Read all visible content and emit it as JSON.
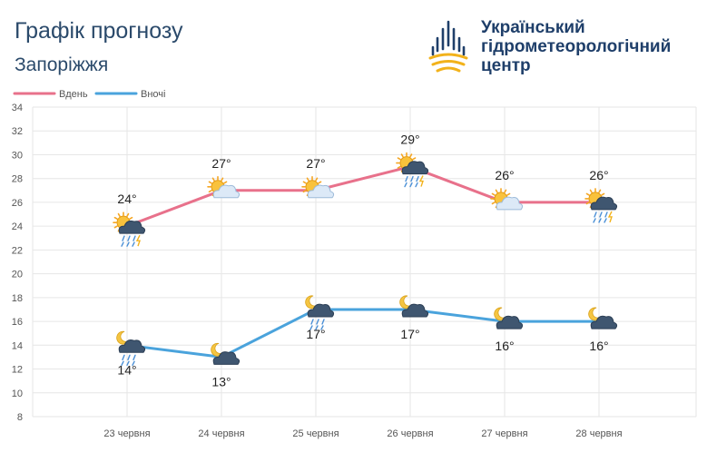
{
  "header": {
    "title": "Графік прогнозу",
    "city": "Запоріжжя"
  },
  "logo": {
    "line1": "Український",
    "line2": "гідрометеорологічний",
    "line3": "центр"
  },
  "colors": {
    "day": "#e8718b",
    "night": "#4aa3dc",
    "grid": "#e6e6e6",
    "text": "#2b4a6b"
  },
  "chart_data": {
    "type": "line",
    "categories": [
      "23 червня",
      "24 червня",
      "25 червня",
      "26 червня",
      "27 червня",
      "28 червня"
    ],
    "ylim": [
      8,
      34
    ],
    "yticks": [
      8,
      10,
      12,
      14,
      16,
      18,
      20,
      22,
      24,
      26,
      28,
      30,
      32,
      34
    ],
    "grid": true,
    "legend": "top-left",
    "series": [
      {
        "name": "Вдень",
        "values": [
          24,
          27,
          27,
          29,
          26,
          26
        ],
        "labels": [
          "24°",
          "27°",
          "27°",
          "29°",
          "26°",
          "26°"
        ],
        "icons": [
          "sun-cloud-rain-thunder-icon",
          "sun-cloud-icon",
          "sun-cloud-icon",
          "sun-cloud-rain-thunder-icon",
          "sun-cloud-icon",
          "sun-cloud-rain-thunder-icon"
        ]
      },
      {
        "name": "Вночі",
        "values": [
          14,
          13,
          17,
          17,
          16,
          16
        ],
        "labels": [
          "14°",
          "13°",
          "17°",
          "17°",
          "16°",
          "16°"
        ],
        "icons": [
          "moon-cloud-rain-icon",
          "moon-cloud-icon",
          "moon-cloud-rain-icon",
          "moon-cloud-icon",
          "moon-cloud-icon",
          "moon-cloud-icon"
        ]
      }
    ]
  }
}
